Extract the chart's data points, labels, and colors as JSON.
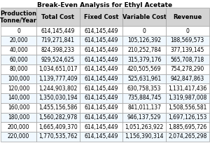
{
  "title": "Break-Even Analysis for Ethyl Acetate",
  "columns": [
    "Production\n(Tonne/Year)",
    "Total Cost",
    "Fixed Cost",
    "Variable Cost",
    "Revenue"
  ],
  "rows": [
    [
      0,
      614145449,
      614145449,
      0,
      0
    ],
    [
      20000,
      719271841,
      614145449,
      105126392,
      188569573
    ],
    [
      40000,
      824398233,
      614145449,
      210252784,
      377139145
    ],
    [
      60000,
      929524625,
      614145449,
      315379176,
      565708718
    ],
    [
      80000,
      1034651017,
      614145449,
      420505569,
      754278290
    ],
    [
      100000,
      1139777409,
      614145449,
      525631961,
      942847863
    ],
    [
      120000,
      1244903802,
      614145449,
      630758353,
      1131417436
    ],
    [
      140000,
      1350030194,
      614145449,
      735884745,
      1319987008
    ],
    [
      160000,
      1455156586,
      614145449,
      841011137,
      1508556581
    ],
    [
      180000,
      1560282978,
      614145449,
      946137529,
      1697126153
    ],
    [
      200000,
      1665409370,
      614145449,
      1051263922,
      1885695726
    ],
    [
      220000,
      1770535762,
      614145449,
      1156390314,
      2074265298
    ]
  ],
  "header_bg": "#d3d3d3",
  "row_bg_even": "#f0f8ff",
  "row_bg_odd": "#ffffff",
  "text_color": "#000000",
  "border_color": "#a0a0a0",
  "font_size": 5.5,
  "header_font_size": 6.0
}
